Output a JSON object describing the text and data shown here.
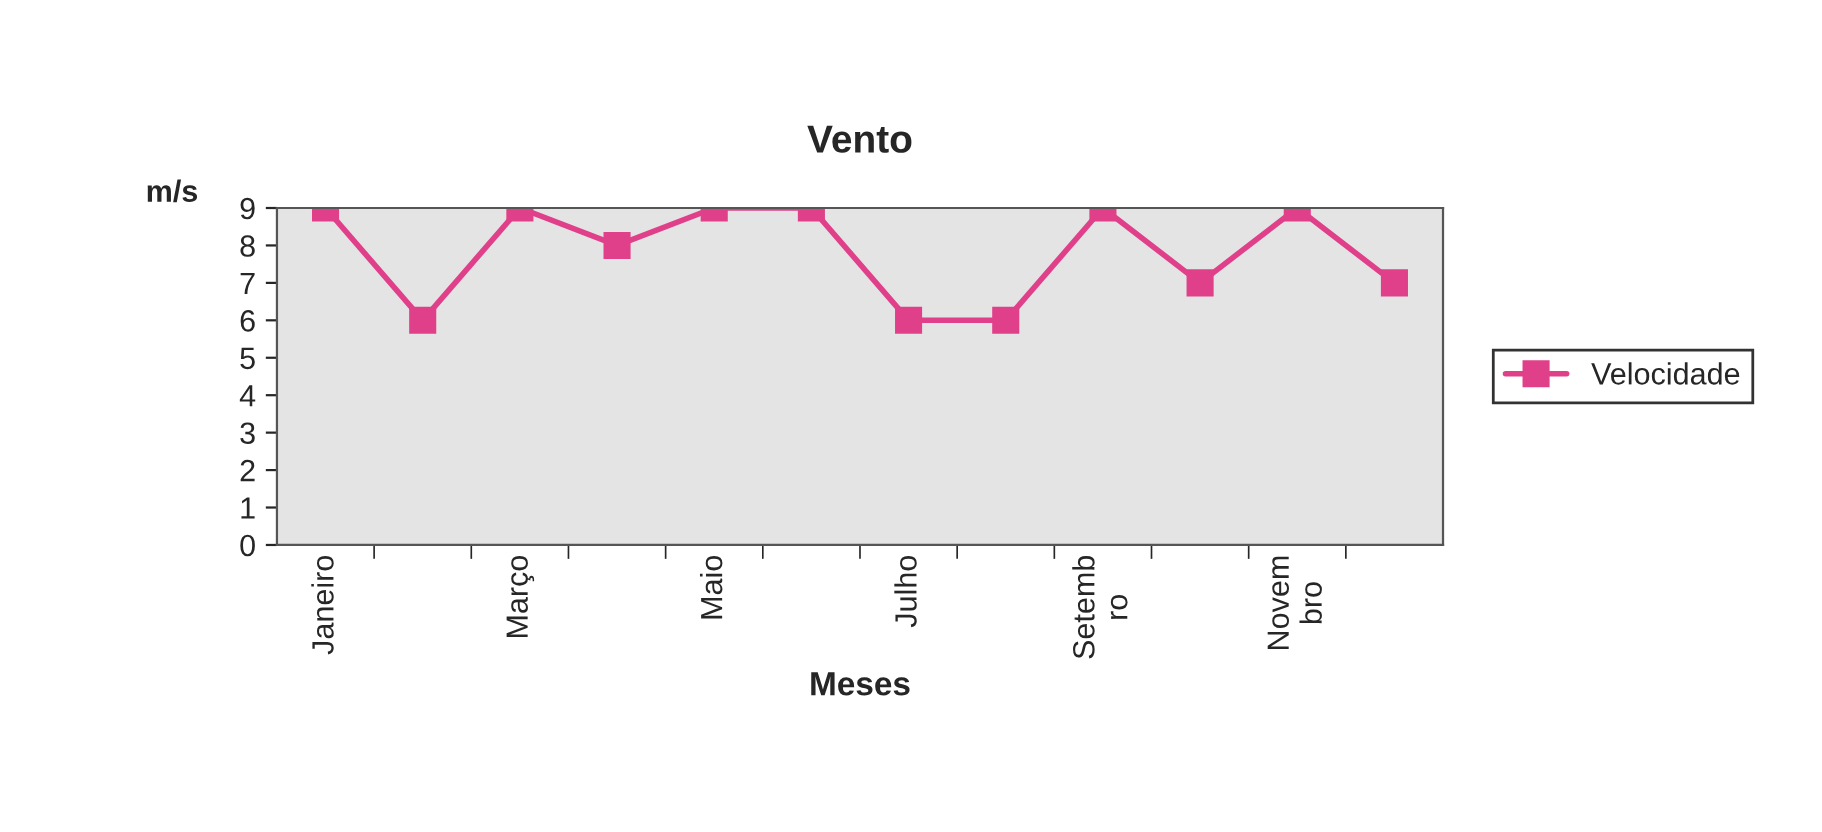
{
  "chart_data": {
    "type": "line",
    "title": "Vento",
    "xlabel": "Meses",
    "ylabel": "m/s",
    "categories": [
      "Janeiro",
      null,
      "Março",
      null,
      "Maio",
      null,
      "Julho",
      null,
      "Setemb\nro",
      null,
      "Novem\nbro",
      null
    ],
    "series": [
      {
        "name": "Velocidade",
        "color": "#e0408a",
        "values": [
          9,
          6,
          9,
          8,
          9,
          9,
          6,
          6,
          9,
          7,
          9,
          7
        ]
      }
    ],
    "ylim": [
      0,
      9
    ],
    "yticks": [
      0,
      1,
      2,
      3,
      4,
      5,
      6,
      7,
      8,
      9
    ],
    "grid": false,
    "legend": "right",
    "marker": "square",
    "line_style": "solid"
  }
}
